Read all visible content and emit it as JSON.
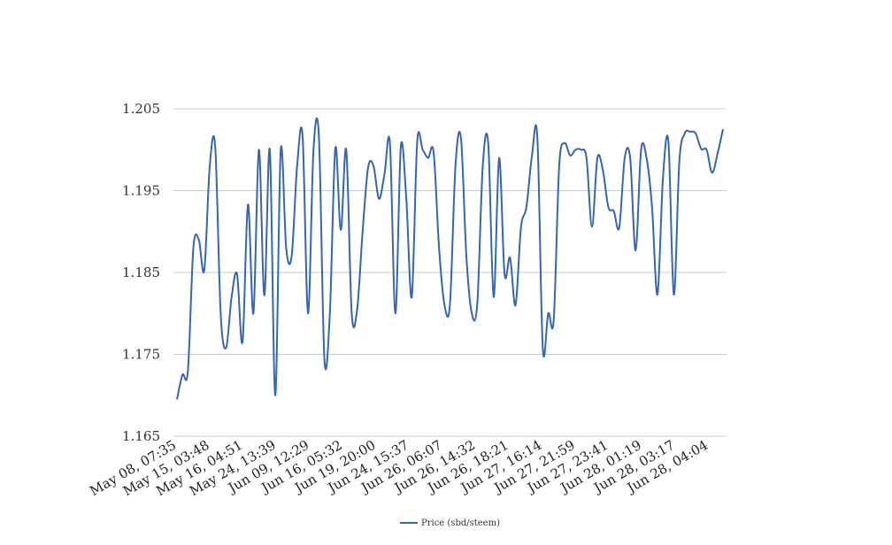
{
  "chart_data": {
    "type": "line",
    "title": "",
    "xlabel": "",
    "ylabel": "",
    "ylim": [
      1.165,
      1.205
    ],
    "y_ticks": [
      "1.205",
      "1.195",
      "1.185",
      "1.175",
      "1.165"
    ],
    "y_tick_values": [
      1.205,
      1.195,
      1.185,
      1.175,
      1.165
    ],
    "x_tick_labels": [
      "May 08, 07:35",
      "May 15, 03:48",
      "May 16, 04:51",
      "May 24, 13:39",
      "Jun 09, 12:29",
      "Jun 16, 05:32",
      "Jun 19, 20:00",
      "Jun 24, 15:37",
      "Jun 26, 06:07",
      "Jun 26, 14:32",
      "Jun 26, 18:21",
      "Jun 27, 16:14",
      "Jun 27, 21:59",
      "Jun 27, 23:41",
      "Jun 28, 01:19",
      "Jun 28, 03:17",
      "Jun 28, 04:04"
    ],
    "grid": true,
    "legend_position": "bottom",
    "series": [
      {
        "name": "Price (sbd/steem)",
        "color": "#3565b5",
        "values": [
          1.1695,
          1.1725,
          1.173,
          1.188,
          1.189,
          1.1853,
          1.198,
          1.2004,
          1.18,
          1.1758,
          1.182,
          1.1848,
          1.1765,
          1.1933,
          1.18,
          1.2,
          1.1822,
          1.2,
          1.17,
          1.2,
          1.188,
          1.187,
          1.198,
          1.2017,
          1.18,
          1.2,
          1.2015,
          1.1744,
          1.18,
          1.2002,
          1.1902,
          1.2,
          1.18,
          1.1805,
          1.19,
          1.1978,
          1.198,
          1.194,
          1.197,
          1.2008,
          1.18,
          1.2004,
          1.194,
          1.182,
          1.201,
          1.2,
          1.199,
          1.1997,
          1.188,
          1.181,
          1.1812,
          1.198,
          1.2015,
          1.187,
          1.18,
          1.1812,
          1.198,
          1.2008,
          1.182,
          1.199,
          1.1848,
          1.1868,
          1.181,
          1.1905,
          1.193,
          1.1992,
          1.2015,
          1.1757,
          1.18,
          1.1792,
          1.198,
          1.2008,
          1.1993,
          1.2,
          1.2,
          1.199,
          1.1906,
          1.199,
          1.1975,
          1.193,
          1.1925,
          1.1905,
          1.199,
          1.199,
          1.1877,
          1.2,
          1.199,
          1.193,
          1.1823,
          1.1965,
          1.201,
          1.1823,
          1.1985,
          1.202,
          1.2022,
          1.202,
          1.2001,
          1.2,
          1.1972,
          1.1995,
          1.2025
        ]
      }
    ]
  }
}
